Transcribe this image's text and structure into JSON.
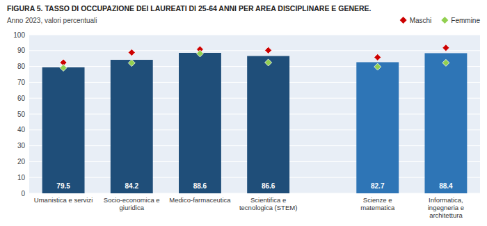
{
  "chart_data": {
    "type": "bar",
    "title": "FIGURA 5. TASSO DI OCCUPAZIONE DEI LAUREATI DI 25-64 ANNI PER AREA DISCIPLINARE E GENERE.",
    "subtitle": "Anno 2023, valori percentuali",
    "categories": [
      "Umanistica e servizi",
      "Socio-economica e\ngiuridica",
      "Medico-farmaceutica",
      "Scientifica e\ntecnologica (STEM)",
      "Scienze e\nmatematica",
      "Informatica,\ningegneria e\narchitettura"
    ],
    "series": [
      {
        "type": "bar",
        "colors": [
          "#1f4e79",
          "#1f4e79",
          "#1f4e79",
          "#1f4e79",
          "#2e75b6",
          "#2e75b6"
        ],
        "values": [
          79.5,
          84.2,
          88.6,
          86.6,
          82.7,
          88.4
        ]
      },
      {
        "name": "Maschi",
        "type": "scatter",
        "marker": "diamond",
        "color": "#cc0000",
        "values": [
          82.5,
          88.8,
          90.8,
          90.2,
          85.8,
          91.8
        ]
      },
      {
        "name": "Femmine",
        "type": "scatter",
        "marker": "diamond",
        "color": "#92d050",
        "values": [
          79.2,
          82.2,
          88.2,
          82.5,
          79.8,
          82.3
        ]
      }
    ],
    "ylim": [
      0,
      100
    ],
    "yticks": [
      0,
      10,
      20,
      30,
      40,
      50,
      60,
      70,
      80,
      90,
      100
    ],
    "grid": true,
    "legend": "upper right",
    "data_labels": true
  }
}
